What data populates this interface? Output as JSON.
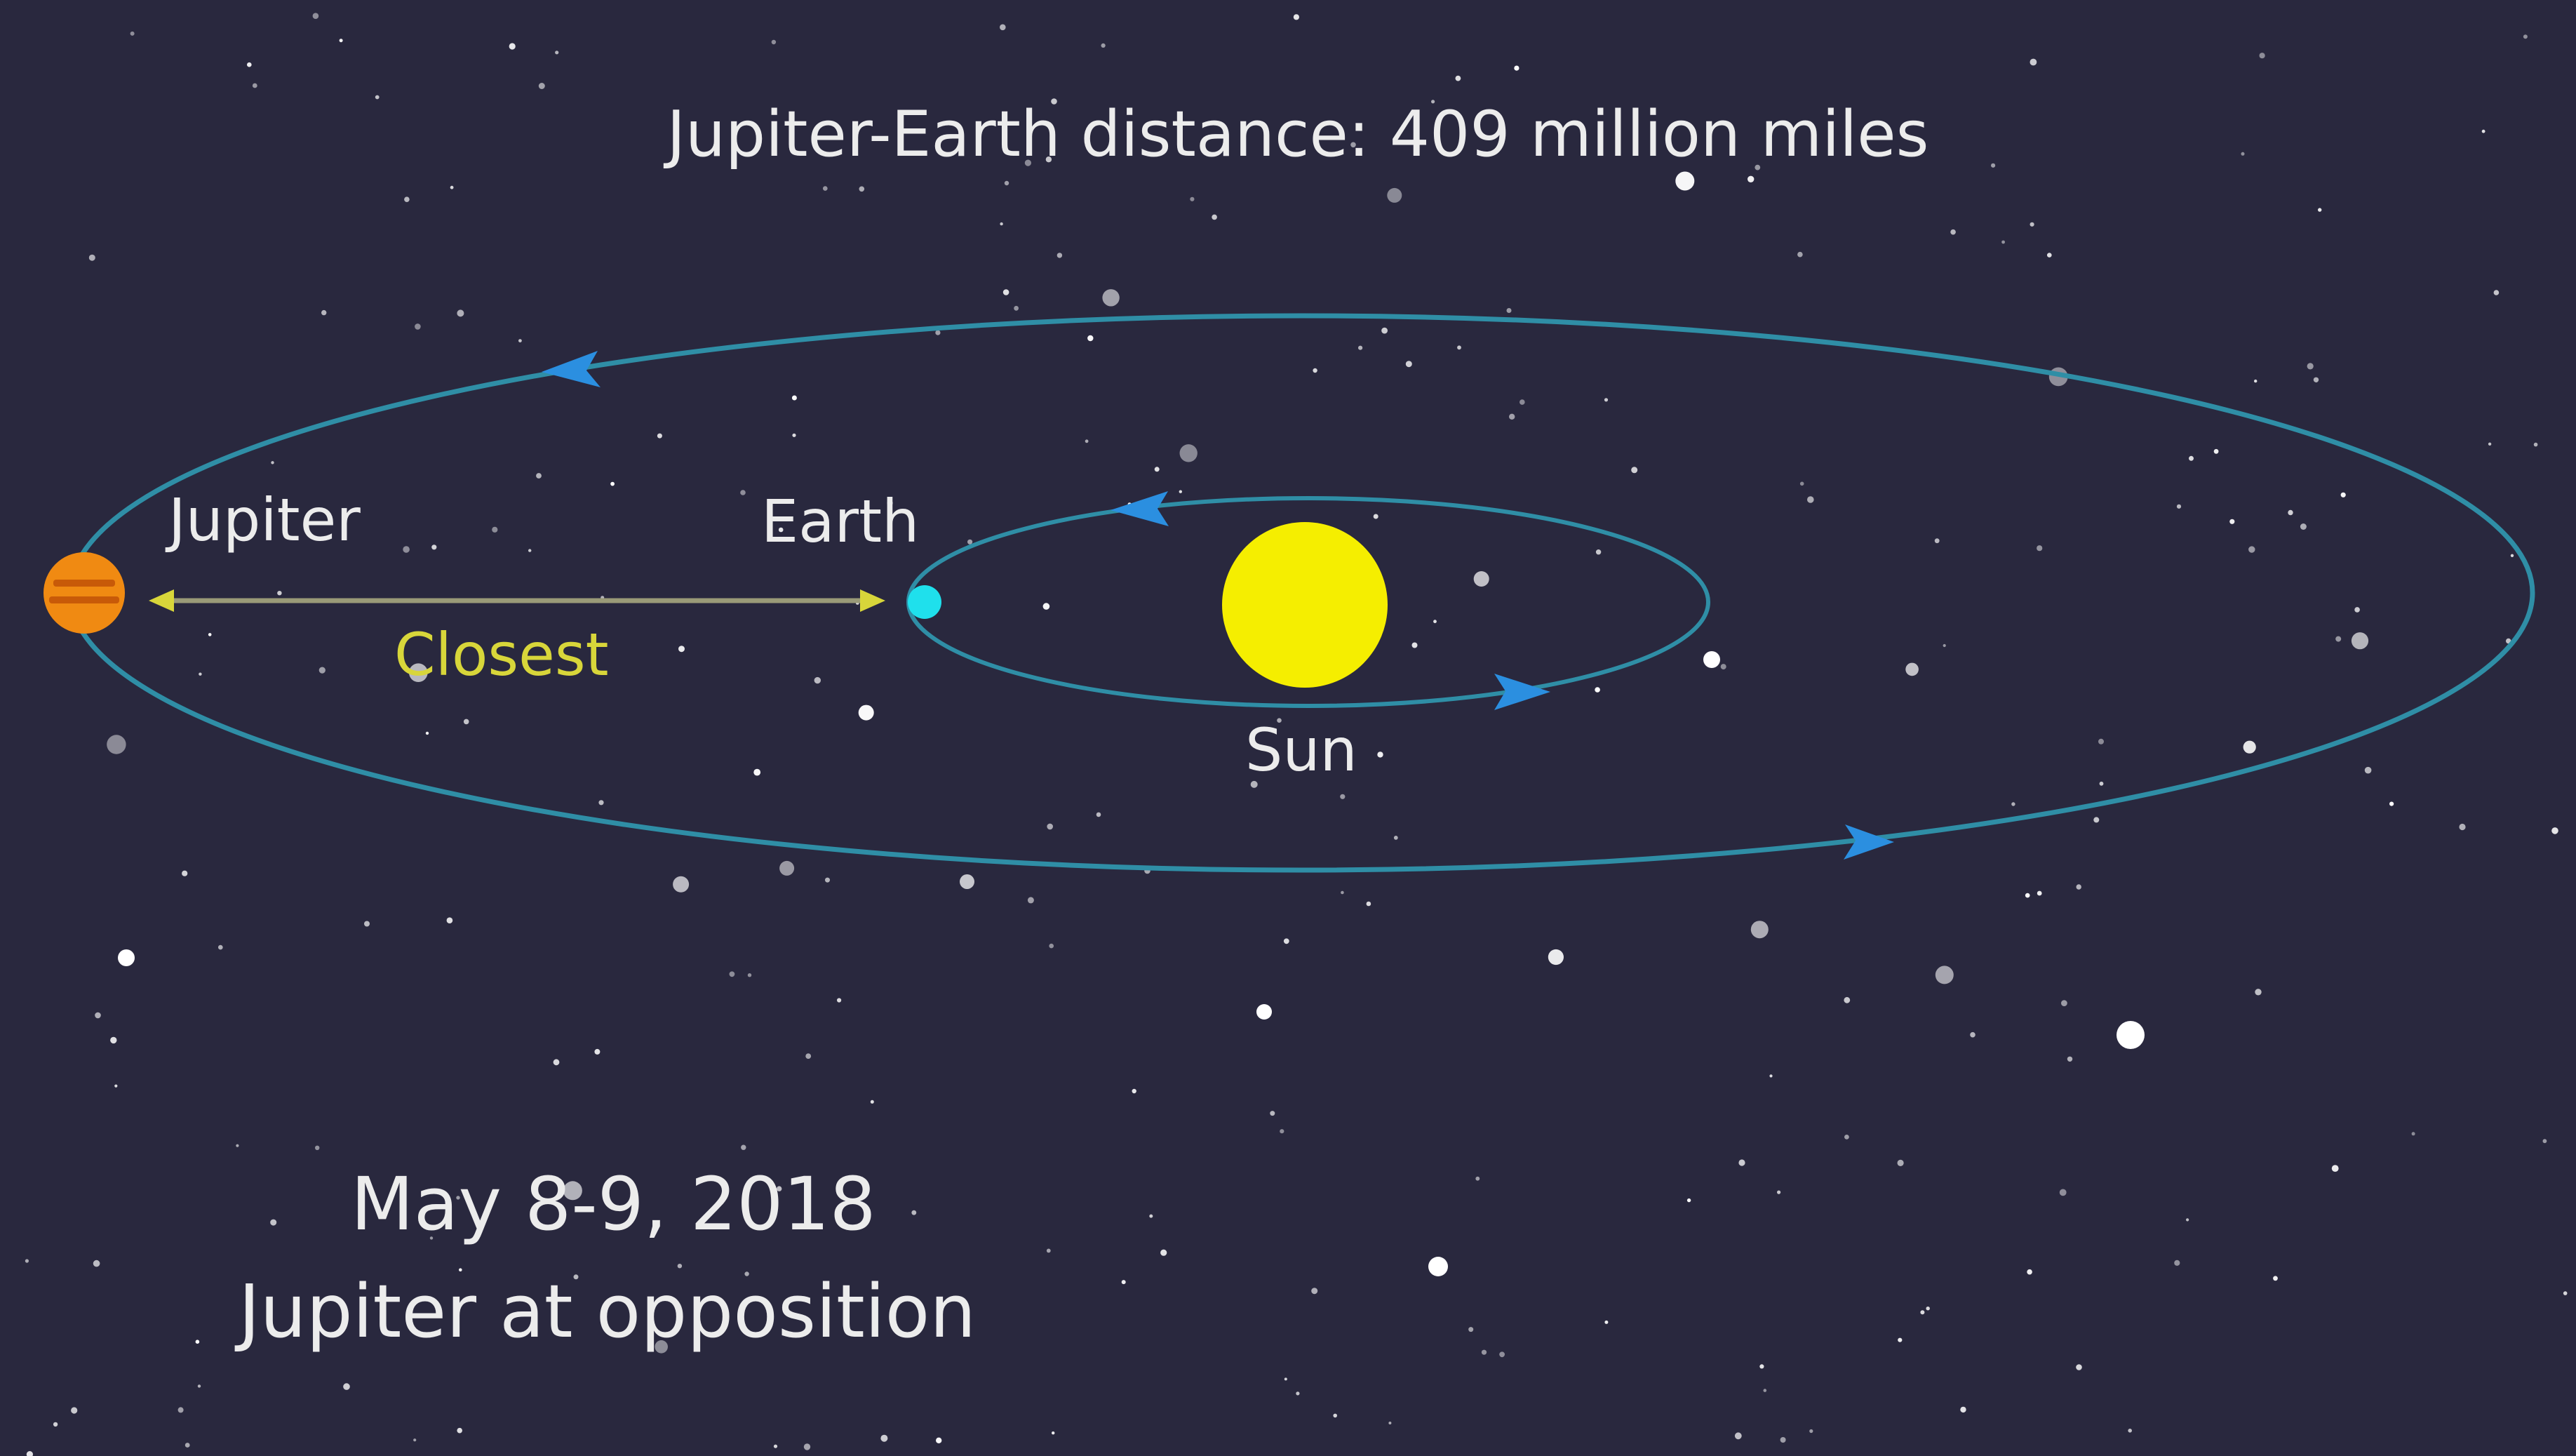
{
  "title": "Jupiter-Earth distance: 409 million miles",
  "labels": {
    "jupiter": "Jupiter",
    "earth": "Earth",
    "sun": "Sun",
    "closest": "Closest"
  },
  "caption": {
    "date": "May 8-9, 2018",
    "event": "Jupiter at opposition"
  },
  "colors": {
    "background": "#29283e",
    "orbit": "#2f8ea6",
    "orbit_arrow": "#2b8fe0",
    "sun": "#f5ee00",
    "earth": "#1fe0ec",
    "jupiter_body": "#f08a12",
    "jupiter_bands": "#c85a08",
    "closest": "#d8d63a",
    "text": "#ececec",
    "star": "#ffffff"
  }
}
